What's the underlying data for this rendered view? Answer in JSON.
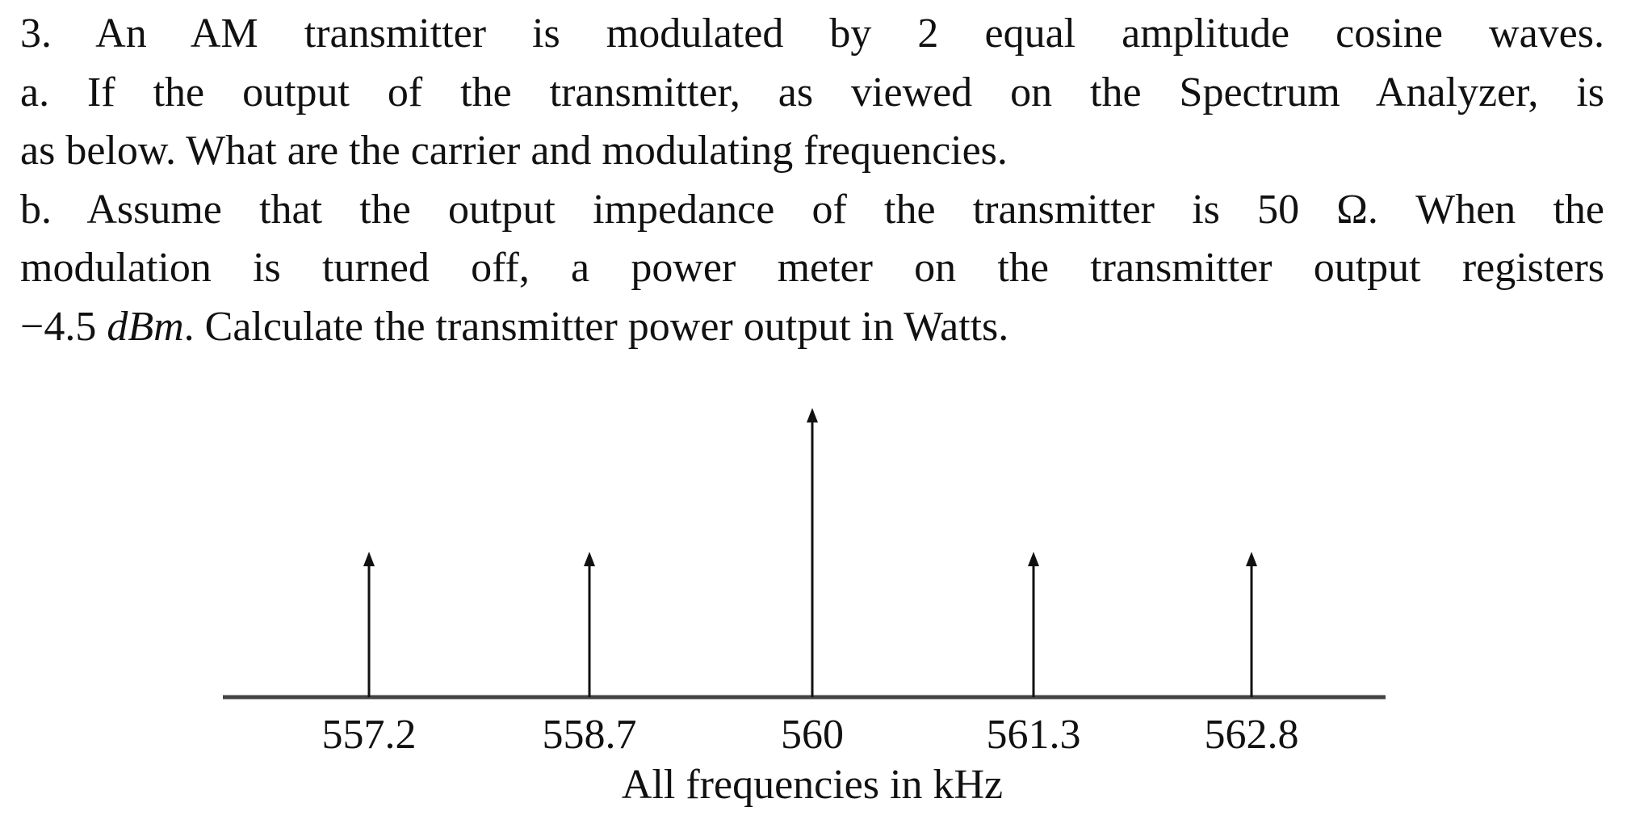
{
  "problem": {
    "lines": [
      "3. An AM transmitter is modulated by 2 equal amplitude cosine waves.",
      "a. If the output of the transmitter, as viewed on the Spectrum Analyzer, is",
      "as below. What are the carrier and modulating frequencies.",
      "b. Assume that the output impedance of the transmitter is 50 Ω. When the",
      "modulation is turned off, a power meter on the transmitter output registers"
    ],
    "last_line": {
      "value": "−4.5",
      "unit": "dBm",
      "rest": ". Calculate the transmitter power output in Watts."
    }
  },
  "figure": {
    "axis_title": "All frequencies in kHz",
    "tick_labels": [
      "557.2",
      "558.7",
      "560",
      "561.3",
      "562.8"
    ]
  },
  "chart_data": {
    "type": "bar",
    "title": "",
    "xlabel": "All frequencies in kHz",
    "ylabel": "",
    "categories": [
      "557.2",
      "558.7",
      "560",
      "561.3",
      "562.8"
    ],
    "x": [
      557.2,
      558.7,
      560.0,
      561.3,
      562.8
    ],
    "values": [
      1,
      1,
      2,
      1,
      1
    ],
    "value_note": "Relative spectral line heights (impulse arrows); carrier at 560 kHz is about twice the sideband height",
    "style": "impulse arrows on a baseline, no y-axis, no grid",
    "grid": false,
    "legend": null
  },
  "colors": {
    "text": "#111111",
    "axis": "#444444",
    "arrow": "#111111",
    "background": "#ffffff"
  }
}
